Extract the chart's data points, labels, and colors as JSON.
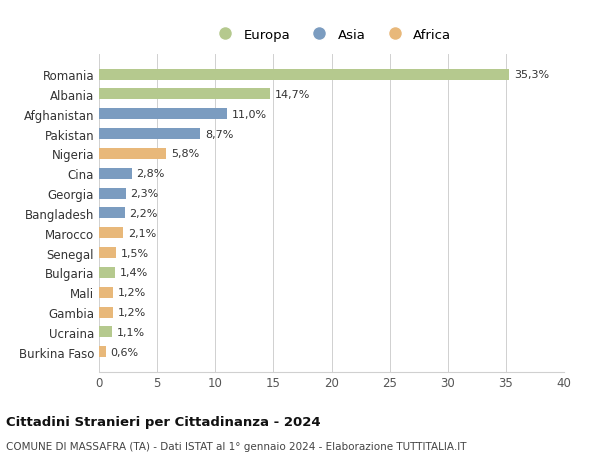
{
  "countries": [
    "Romania",
    "Albania",
    "Afghanistan",
    "Pakistan",
    "Nigeria",
    "Cina",
    "Georgia",
    "Bangladesh",
    "Marocco",
    "Senegal",
    "Bulgaria",
    "Mali",
    "Gambia",
    "Ucraina",
    "Burkina Faso"
  ],
  "values": [
    35.3,
    14.7,
    11.0,
    8.7,
    5.8,
    2.8,
    2.3,
    2.2,
    2.1,
    1.5,
    1.4,
    1.2,
    1.2,
    1.1,
    0.6
  ],
  "labels": [
    "35,3%",
    "14,7%",
    "11,0%",
    "8,7%",
    "5,8%",
    "2,8%",
    "2,3%",
    "2,2%",
    "2,1%",
    "1,5%",
    "1,4%",
    "1,2%",
    "1,2%",
    "1,1%",
    "0,6%"
  ],
  "continents": [
    "Europa",
    "Europa",
    "Asia",
    "Asia",
    "Africa",
    "Asia",
    "Asia",
    "Asia",
    "Africa",
    "Africa",
    "Europa",
    "Africa",
    "Africa",
    "Europa",
    "Africa"
  ],
  "colors": {
    "Europa": "#b5c98e",
    "Asia": "#7b9cc0",
    "Africa": "#e8b87a"
  },
  "legend": [
    "Europa",
    "Asia",
    "Africa"
  ],
  "legend_colors": [
    "#b5c98e",
    "#7b9cc0",
    "#e8b87a"
  ],
  "title": "Cittadini Stranieri per Cittadinanza - 2024",
  "subtitle": "COMUNE DI MASSAFRA (TA) - Dati ISTAT al 1° gennaio 2024 - Elaborazione TUTTITALIA.IT",
  "xlim": [
    0,
    40
  ],
  "xticks": [
    0,
    5,
    10,
    15,
    20,
    25,
    30,
    35,
    40
  ],
  "background_color": "#ffffff",
  "grid_color": "#d0d0d0"
}
